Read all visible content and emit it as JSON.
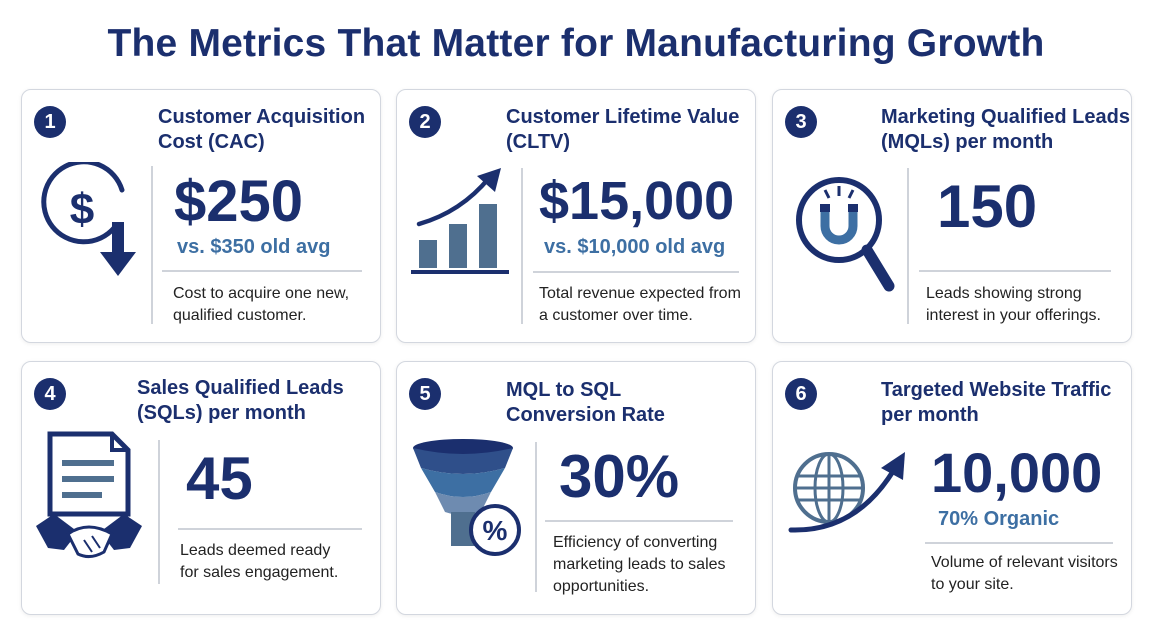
{
  "page": {
    "title": "The Metrics That Matter for Manufacturing Growth"
  },
  "metrics": [
    {
      "number": "1",
      "title_line1": "Customer Acquisition",
      "title_line2": "Cost (CAC)",
      "value": "$250",
      "comparison": "vs. $350 old avg",
      "desc_line1": "Cost to acquire one new,",
      "desc_line2": "qualified customer.",
      "icon": "dollar-down-icon"
    },
    {
      "number": "2",
      "title_line1": "Customer Lifetime Value",
      "title_line2": "(CLTV)",
      "value": "$15,000",
      "comparison": "vs. $10,000 old avg",
      "desc_line1": "Total revenue expected from",
      "desc_line2": "a customer over time.",
      "icon": "growth-chart-icon"
    },
    {
      "number": "3",
      "title_line1": "Marketing Qualified Leads",
      "title_line2": "(MQLs) per month",
      "value": "150",
      "desc_line1": "Leads showing strong",
      "desc_line2": "interest in your offerings.",
      "icon": "magnet-magnifier-icon"
    },
    {
      "number": "4",
      "title_line1": "Sales Qualified Leads",
      "title_line2": "(SQLs) per month",
      "value": "45",
      "desc_line1": "Leads deemed ready",
      "desc_line2": "for sales engagement.",
      "icon": "document-handshake-icon"
    },
    {
      "number": "5",
      "title_line1": "MQL to SQL",
      "title_line2": "Conversion Rate",
      "value": "30%",
      "desc_line1": "Efficiency of converting",
      "desc_line2": "marketing leads to sales",
      "desc_line3": "opportunities.",
      "icon": "funnel-percent-icon"
    },
    {
      "number": "6",
      "title_line1": "Targeted Website Traffic",
      "title_line2": "per month",
      "value": "10,000",
      "comparison": "70% Organic",
      "desc_line1": "Volume of relevant visitors",
      "desc_line2": "to your site.",
      "icon": "globe-arrow-icon"
    }
  ],
  "colors": {
    "navy": "#1b2f6e",
    "accent_blue": "#3d6fa3",
    "slate": "#4f6f8f"
  }
}
